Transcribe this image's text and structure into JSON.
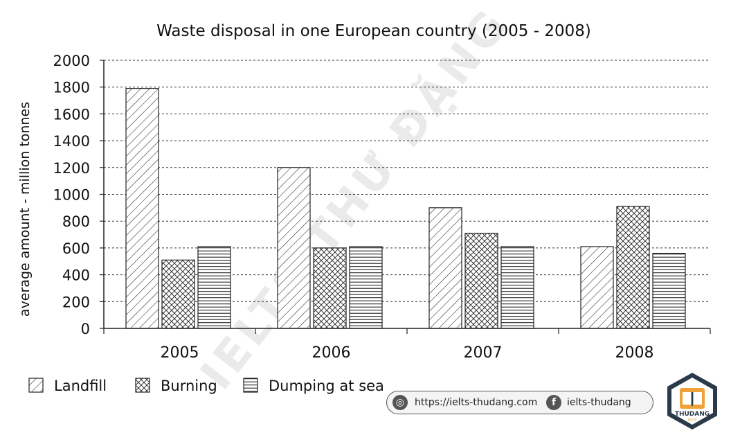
{
  "chart_data": {
    "type": "bar",
    "title": "Waste disposal in one European country (2005 - 2008)",
    "ylabel": "average amount - million tonnes",
    "xlabel": "",
    "categories": [
      "2005",
      "2006",
      "2007",
      "2008"
    ],
    "series": [
      {
        "name": "Landfill",
        "values": [
          1790,
          1200,
          900,
          610
        ],
        "pattern": "diagonal"
      },
      {
        "name": "Burning",
        "values": [
          510,
          600,
          710,
          910
        ],
        "pattern": "crosshatch"
      },
      {
        "name": "Dumping at sea",
        "values": [
          610,
          610,
          610,
          560
        ],
        "pattern": "horizontal"
      }
    ],
    "ylim": [
      0,
      2000
    ],
    "yticks": [
      0,
      200,
      400,
      600,
      800,
      1000,
      1200,
      1400,
      1600,
      1800,
      2000
    ],
    "grid": true,
    "legend_position": "bottom-left"
  },
  "watermark": "IELTS THƯ ĐẶNG",
  "badge": {
    "website": "https://ielts-thudang.com",
    "facebook": "ielts-thudang"
  },
  "logo": {
    "brand": "THUDANG",
    "sub": "IELTS"
  }
}
